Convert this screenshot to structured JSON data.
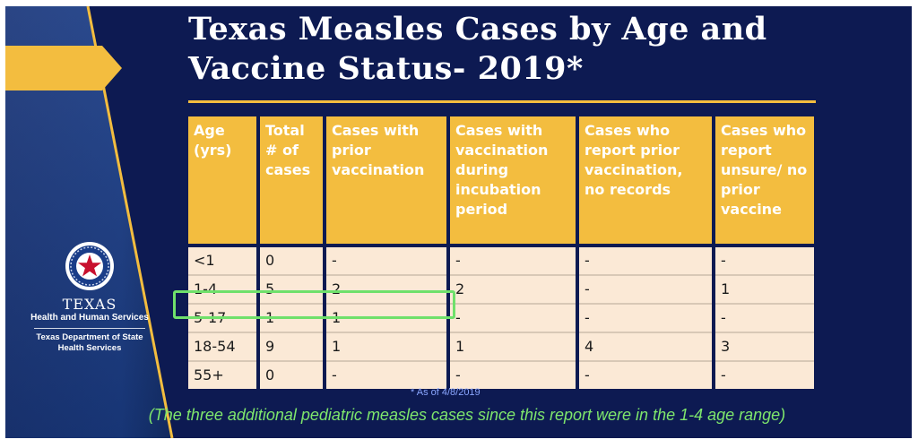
{
  "title": "Texas Measles Cases by Age and Vaccine Status- 2019*",
  "table": {
    "headers": [
      "Age (yrs)",
      "Total # of cases",
      "Cases with prior vaccination",
      "Cases with vaccination during incubation period",
      "Cases who report prior vaccination, no records",
      "Cases who report unsure/ no prior vaccine"
    ],
    "rows": [
      [
        "<1",
        "0",
        "-",
        "-",
        "-",
        "-"
      ],
      [
        "1-4",
        "5",
        "2",
        "2",
        "-",
        "1"
      ],
      [
        "5-17",
        "1",
        "1",
        "-",
        "-",
        "-"
      ],
      [
        "18-54",
        "9",
        "1",
        "1",
        "4",
        "3"
      ],
      [
        "55+",
        "0",
        "-",
        "-",
        "-",
        "-"
      ]
    ],
    "highlighted_row": "5-17"
  },
  "footnote": "* As of 4/8/2019",
  "note": "(The three additional pediatric measles cases since this report were in the 1-4 age range)",
  "logo": {
    "name": "TEXAS",
    "line1": "Health and Human Services",
    "line2": "Texas Department of State",
    "line3": "Health Services"
  },
  "colors": {
    "background": "#0d1a52",
    "header_fill": "#f3bd3f",
    "cell_fill": "#fbe9d6",
    "highlight": "#6fe06b",
    "note_text": "#7ee66c"
  }
}
